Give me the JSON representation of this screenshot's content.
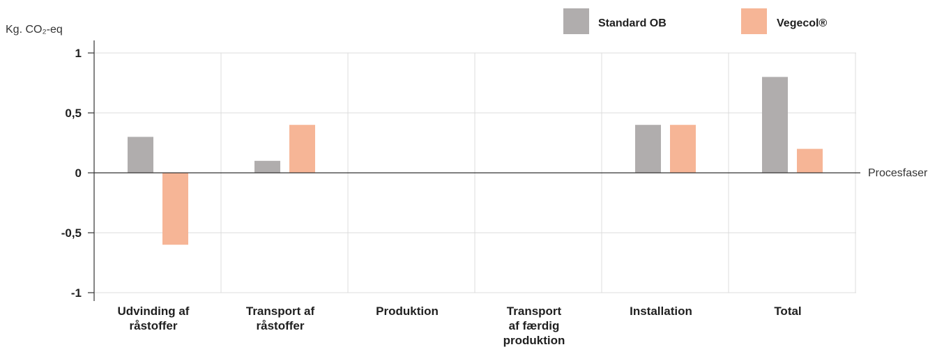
{
  "chart_data": {
    "type": "bar",
    "ylabel": "Kg. CO₂-eq",
    "xlabel": "Procesfaser",
    "categories": [
      [
        "Udvinding af",
        "råstoffer"
      ],
      [
        "Transport af",
        "råstoffer"
      ],
      [
        "Produktion"
      ],
      [
        "Transport",
        "af færdig",
        "produktion"
      ],
      [
        "Installation"
      ],
      [
        "Total"
      ]
    ],
    "series": [
      {
        "name": "Standard OB",
        "color": "#b0adad",
        "values": [
          0.3,
          0.1,
          0,
          0,
          0.4,
          0.8
        ]
      },
      {
        "name": "Vegecol®",
        "color": "#f6b596",
        "values": [
          -0.6,
          0.4,
          0,
          0,
          0.4,
          0.2
        ]
      }
    ],
    "ylim": [
      -1,
      1
    ],
    "yticks": [
      {
        "value": 1,
        "label": "1"
      },
      {
        "value": 0.5,
        "label": "0,5"
      },
      {
        "value": 0,
        "label": "0"
      },
      {
        "value": -0.5,
        "label": "-0,5"
      },
      {
        "value": -1,
        "label": "-1"
      }
    ],
    "grid": true,
    "legend_position": "top-right"
  }
}
